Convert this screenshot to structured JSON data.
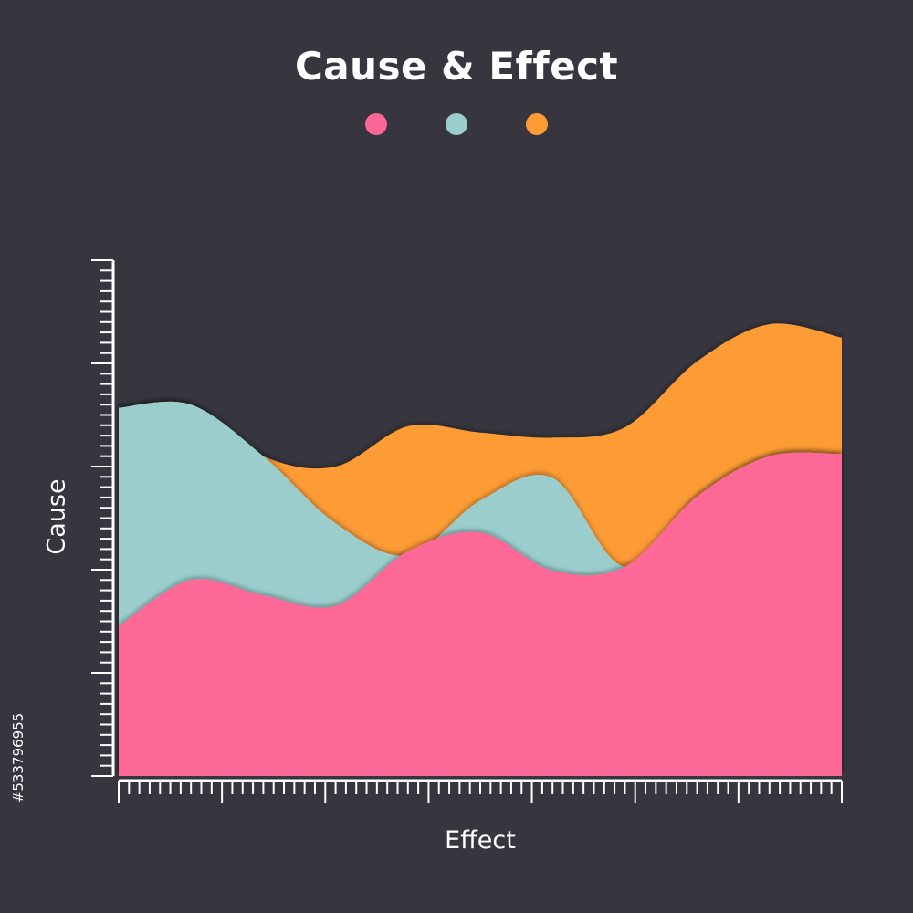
{
  "chart_data": {
    "type": "area",
    "title": "Cause & Effect",
    "xlabel": "Effect",
    "ylabel": "Cause",
    "x": [
      0,
      1,
      2,
      3,
      4,
      5,
      6,
      7,
      8,
      9,
      10
    ],
    "series": [
      {
        "color": "#fd6797",
        "values": [
          14.5,
          19.0,
          17.5,
          16.5,
          21.8,
          23.6,
          19.9,
          20.3,
          27.1,
          31.0,
          31.2
        ]
      },
      {
        "color": "#9acdcc",
        "values": [
          35.7,
          36.0,
          31.0,
          24.5,
          21.4,
          26.7,
          28.9,
          20.3,
          27.1,
          31.0,
          31.2
        ]
      },
      {
        "color": "#fd9b34",
        "values": [
          35.7,
          36.0,
          31.0,
          30.0,
          33.9,
          33.3,
          32.8,
          33.8,
          40.2,
          43.8,
          42.5
        ]
      }
    ],
    "ylim": [
      0,
      50
    ],
    "xlim": [
      0,
      10
    ],
    "grid": false,
    "legend_position": "top-center"
  },
  "stock_id": "#533796955"
}
